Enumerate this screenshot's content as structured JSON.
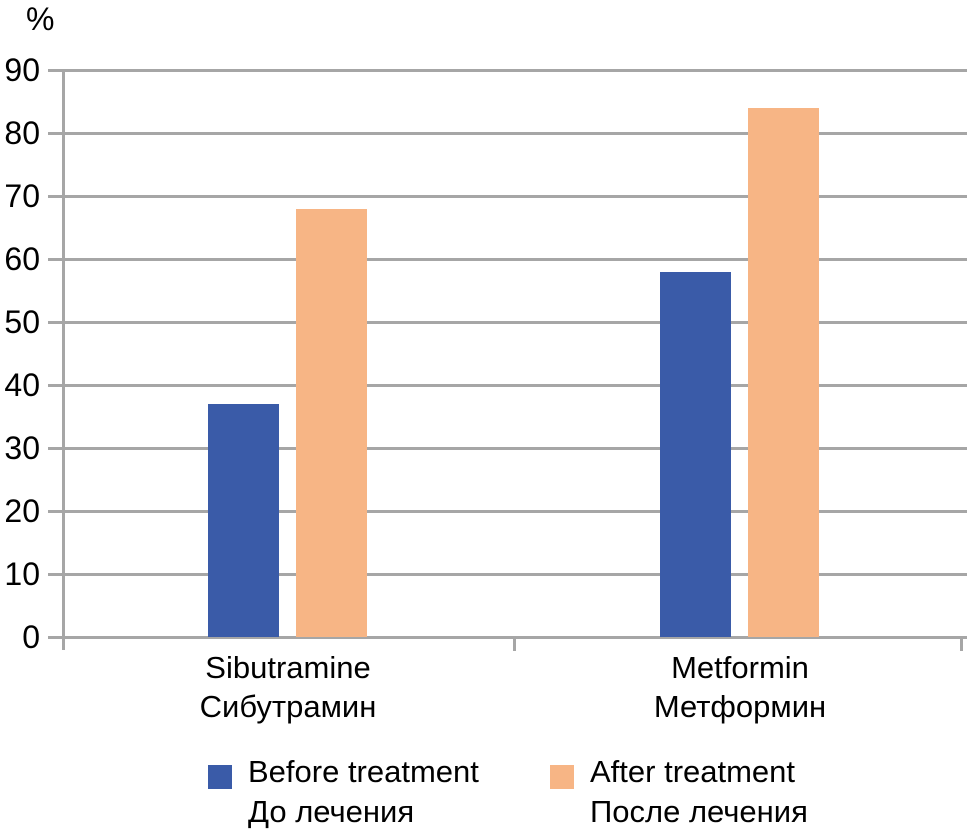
{
  "chart_data": {
    "type": "bar",
    "unit_label": "%",
    "categories": [
      {
        "label_en": "Sibutramine",
        "label_ru": "Сибутрамин"
      },
      {
        "label_en": "Metformin",
        "label_ru": "Метформин"
      }
    ],
    "series": [
      {
        "label_en": "Before treatment",
        "label_ru": "До лечения",
        "color": "#3a5ba8",
        "values": [
          37,
          58
        ]
      },
      {
        "label_en": "After treatment",
        "label_ru": "После лечения",
        "color": "#f7b585",
        "values": [
          68,
          84
        ]
      }
    ],
    "ylim": [
      0,
      90
    ],
    "yticks": [
      0,
      10,
      20,
      30,
      40,
      50,
      60,
      70,
      80,
      90
    ],
    "grid": true,
    "legend_position": "bottom",
    "gridline_color": "#a6a6a6",
    "axis_text_color": "#000000"
  }
}
